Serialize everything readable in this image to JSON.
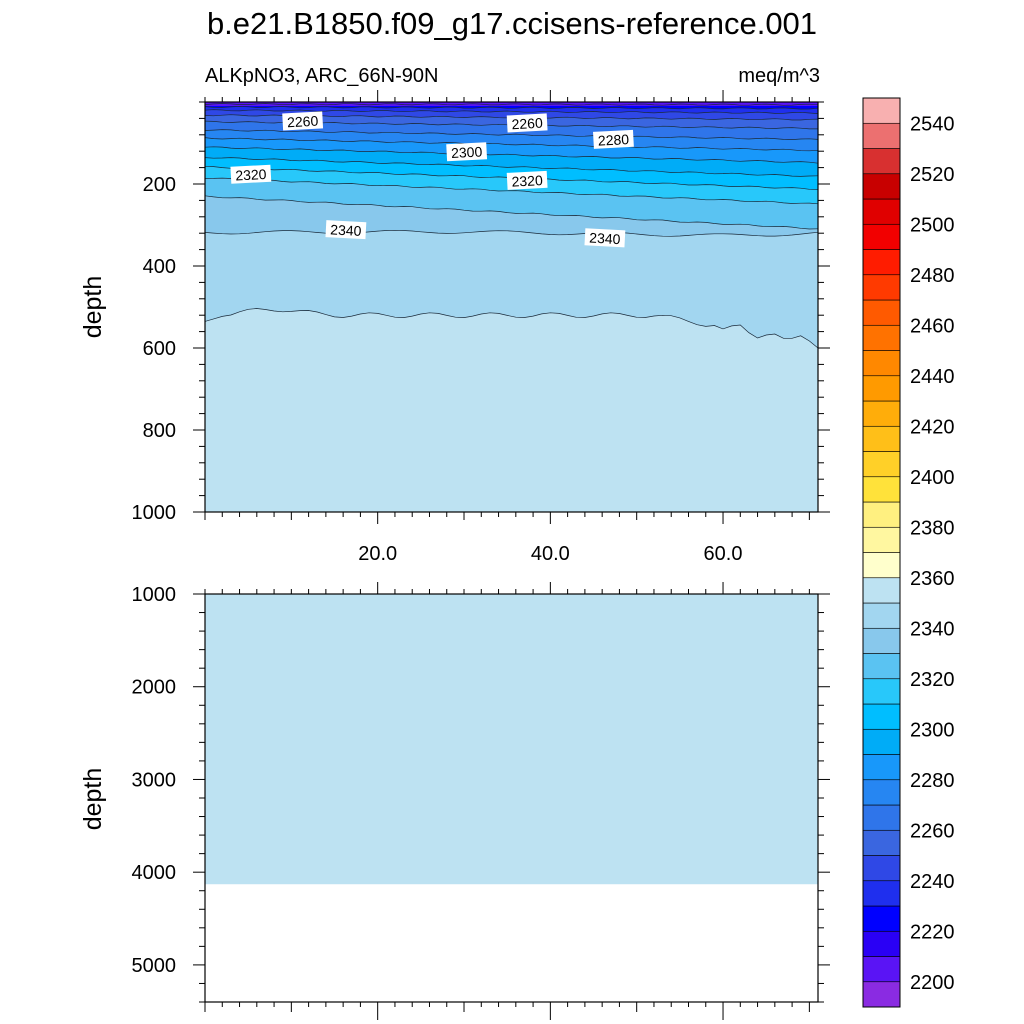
{
  "chart_data": {
    "type": "contour",
    "title": "b.e21.B1850.f09_g17.ccisens-reference.001",
    "subtitle_left": "ALKpNO3, ARC_66N-90N",
    "subtitle_right": "meq/m^3",
    "colorbar": {
      "levels": [
        2200,
        2210,
        2220,
        2230,
        2240,
        2250,
        2260,
        2270,
        2280,
        2290,
        2300,
        2310,
        2320,
        2330,
        2340,
        2350,
        2360,
        2370,
        2380,
        2390,
        2400,
        2410,
        2420,
        2430,
        2440,
        2450,
        2460,
        2470,
        2480,
        2490,
        2500,
        2510,
        2520,
        2530,
        2540,
        2550
      ],
      "tick_labels": [
        "2200",
        "2220",
        "2240",
        "2260",
        "2280",
        "2300",
        "2320",
        "2340",
        "2360",
        "2380",
        "2400",
        "2420",
        "2440",
        "2460",
        "2480",
        "2500",
        "2520",
        "2540"
      ],
      "colors": [
        "#8a2be2",
        "#5a14f5",
        "#2a00f5",
        "#0000ff",
        "#1f2fee",
        "#2f48e6",
        "#3a66e0",
        "#2f75ea",
        "#2686f2",
        "#1898fa",
        "#00acf7",
        "#00beff",
        "#28c8fa",
        "#5ac3f2",
        "#88c8ec",
        "#a2d6f0",
        "#bde2f2",
        "#ffffcc",
        "#fff7a0",
        "#fff080",
        "#ffe23a",
        "#ffd028",
        "#ffbf18",
        "#ffad0a",
        "#ff9a00",
        "#ff8800",
        "#ff7200",
        "#ff5a00",
        "#ff3a00",
        "#ff1c00",
        "#f20000",
        "#e00000",
        "#c80000",
        "#d83030",
        "#ec7070",
        "#f8b0b0"
      ]
    },
    "panels": [
      {
        "name": "upper",
        "x_ticks": [
          "20.0",
          "40.0",
          "60.0"
        ],
        "x_tick_values": [
          20,
          40,
          60
        ],
        "xlim": [
          0,
          71
        ],
        "ylabel": "depth",
        "y_ticks": [
          "200",
          "400",
          "600",
          "800",
          "1000"
        ],
        "y_tick_values": [
          200,
          400,
          600,
          800,
          1000
        ],
        "ylim": [
          0,
          1000
        ],
        "contour_labels": [
          {
            "text": "2260",
            "x": 9,
            "y": 50
          },
          {
            "text": "2260",
            "x": 35,
            "y": 55
          },
          {
            "text": "2280",
            "x": 45,
            "y": 95
          },
          {
            "text": "2300",
            "x": 28,
            "y": 125
          },
          {
            "text": "2320",
            "x": 3,
            "y": 180
          },
          {
            "text": "2320",
            "x": 35,
            "y": 195
          },
          {
            "text": "2340",
            "x": 14,
            "y": 310
          },
          {
            "text": "2340",
            "x": 44,
            "y": 330
          }
        ]
      },
      {
        "name": "lower",
        "ylabel": "depth",
        "y_ticks": [
          "1000",
          "2000",
          "3000",
          "4000",
          "5000"
        ],
        "y_tick_values": [
          1000,
          2000,
          3000,
          4000,
          5000
        ],
        "ylim": [
          1000,
          5400
        ],
        "fill_value": 2350,
        "bottom_of_data": 4130
      }
    ]
  }
}
